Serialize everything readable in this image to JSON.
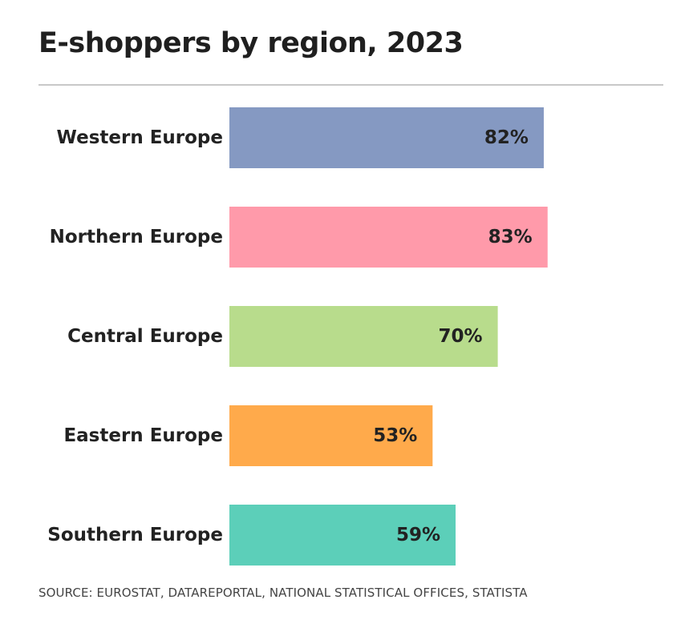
{
  "title": "E-shoppers by region, 2023",
  "source": "SOURCE: EUROSTAT, DATAREPORTAL, NATIONAL STATISTICAL OFFICES, STATISTA",
  "chart_data": {
    "type": "bar",
    "orientation": "horizontal",
    "title": "E-shoppers by region, 2023",
    "categories": [
      "Western Europe",
      "Northern Europe",
      "Central Europe",
      "Eastern Europe",
      "Southern Europe"
    ],
    "values": [
      82,
      83,
      70,
      53,
      59
    ],
    "value_labels": [
      "82%",
      "83%",
      "70%",
      "53%",
      "59%"
    ],
    "colors": [
      "#8599c2",
      "#ff9aaa",
      "#b8dc8c",
      "#ffaa4b",
      "#5ccfb9"
    ],
    "xlim": [
      0,
      100
    ],
    "grid": false,
    "legend": "none"
  }
}
